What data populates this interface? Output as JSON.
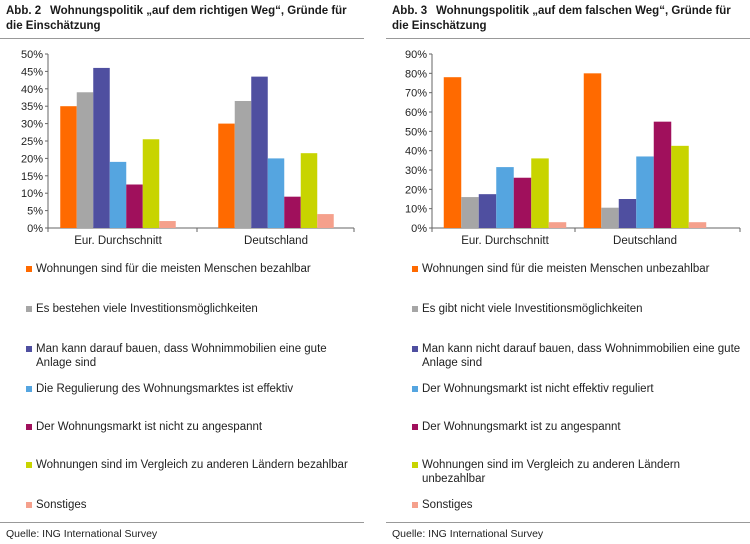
{
  "colors": [
    "#ff6a00",
    "#a6a6a6",
    "#4f4fa0",
    "#55a5e0",
    "#a0105c",
    "#c8d400",
    "#f5a08c"
  ],
  "charts": [
    {
      "number": "Abb. 2",
      "title": "Wohnungspolitik „auf dem richtigen Weg“, Gründe für die Einschätzung",
      "source": "Quelle: ING International Survey",
      "legend": [
        "Wohnungen sind für die meisten Menschen bezahlbar",
        "Es bestehen viele Investitionsmöglichkeiten",
        "Man kann darauf bauen, dass Wohnimmobilien eine gute Anlage sind",
        "Die Regulierung des Wohnungsmarktes ist effektiv",
        "Der Wohnungsmarkt ist nicht zu angespannt",
        "Wohnungen sind im Vergleich zu anderen Ländern bezahlbar",
        "Sonstiges"
      ]
    },
    {
      "number": "Abb. 3",
      "title": "Wohnungspolitik „auf dem falschen Weg“, Gründe für die Einschätzung",
      "source": "Quelle: ING International Survey",
      "legend": [
        "Wohnungen sind für die meisten Menschen unbezahlbar",
        "Es gibt nicht viele Investitionsmöglichkeiten",
        "Man kann nicht darauf bauen, dass Wohnimmobilien eine gute Anlage sind",
        "Der Wohnungsmarkt ist nicht effektiv reguliert",
        "Der Wohnungsmarkt ist zu angespannt",
        "Wohnungen sind im Vergleich zu anderen Ländern unbezahlbar",
        "Sonstiges"
      ]
    }
  ],
  "chart_data": [
    {
      "type": "bar",
      "title": "Wohnungspolitik „auf dem richtigen Weg“, Gründe für die Einschätzung",
      "categories": [
        "Eur. Durchschnitt",
        "Deutschland"
      ],
      "ylim": [
        0,
        50
      ],
      "yticks": [
        0,
        5,
        10,
        15,
        20,
        25,
        30,
        35,
        40,
        45,
        50
      ],
      "tick_suffix": "%",
      "grid": false,
      "legend_position": "bottom",
      "series": [
        {
          "name": "Wohnungen sind für die meisten Menschen bezahlbar",
          "values": [
            35,
            30
          ]
        },
        {
          "name": "Es bestehen viele Investitionsmöglichkeiten",
          "values": [
            39,
            36.5
          ]
        },
        {
          "name": "Man kann darauf bauen, dass Wohnimmobilien eine gute Anlage sind",
          "values": [
            46,
            43.5
          ]
        },
        {
          "name": "Die Regulierung des Wohnungsmarktes ist effektiv",
          "values": [
            19,
            20
          ]
        },
        {
          "name": "Der Wohnungsmarkt ist nicht zu angespannt",
          "values": [
            12.5,
            9
          ]
        },
        {
          "name": "Wohnungen sind im Vergleich zu anderen Ländern bezahlbar",
          "values": [
            25.5,
            21.5
          ]
        },
        {
          "name": "Sonstiges",
          "values": [
            2,
            4
          ]
        }
      ]
    },
    {
      "type": "bar",
      "title": "Wohnungspolitik „auf dem falschen Weg“, Gründe für die Einschätzung",
      "categories": [
        "Eur. Durchschnitt",
        "Deutschland"
      ],
      "ylim": [
        0,
        90
      ],
      "yticks": [
        0,
        10,
        20,
        30,
        40,
        50,
        60,
        70,
        80,
        90
      ],
      "tick_suffix": "%",
      "grid": false,
      "legend_position": "bottom",
      "series": [
        {
          "name": "Wohnungen sind für die meisten Menschen unbezahlbar",
          "values": [
            78,
            80
          ]
        },
        {
          "name": "Es gibt nicht viele Investitionsmöglichkeiten",
          "values": [
            16,
            10.5
          ]
        },
        {
          "name": "Man kann nicht darauf bauen, dass Wohnimmobilien eine gute Anlage sind",
          "values": [
            17.5,
            15
          ]
        },
        {
          "name": "Der Wohnungsmarkt ist nicht effektiv reguliert",
          "values": [
            31.5,
            37
          ]
        },
        {
          "name": "Der Wohnungsmarkt ist zu angespannt",
          "values": [
            26,
            55
          ]
        },
        {
          "name": "Wohnungen sind im Vergleich zu anderen Ländern unbezahlbar",
          "values": [
            36,
            42.5
          ]
        },
        {
          "name": "Sonstiges",
          "values": [
            3,
            3
          ]
        }
      ]
    }
  ]
}
